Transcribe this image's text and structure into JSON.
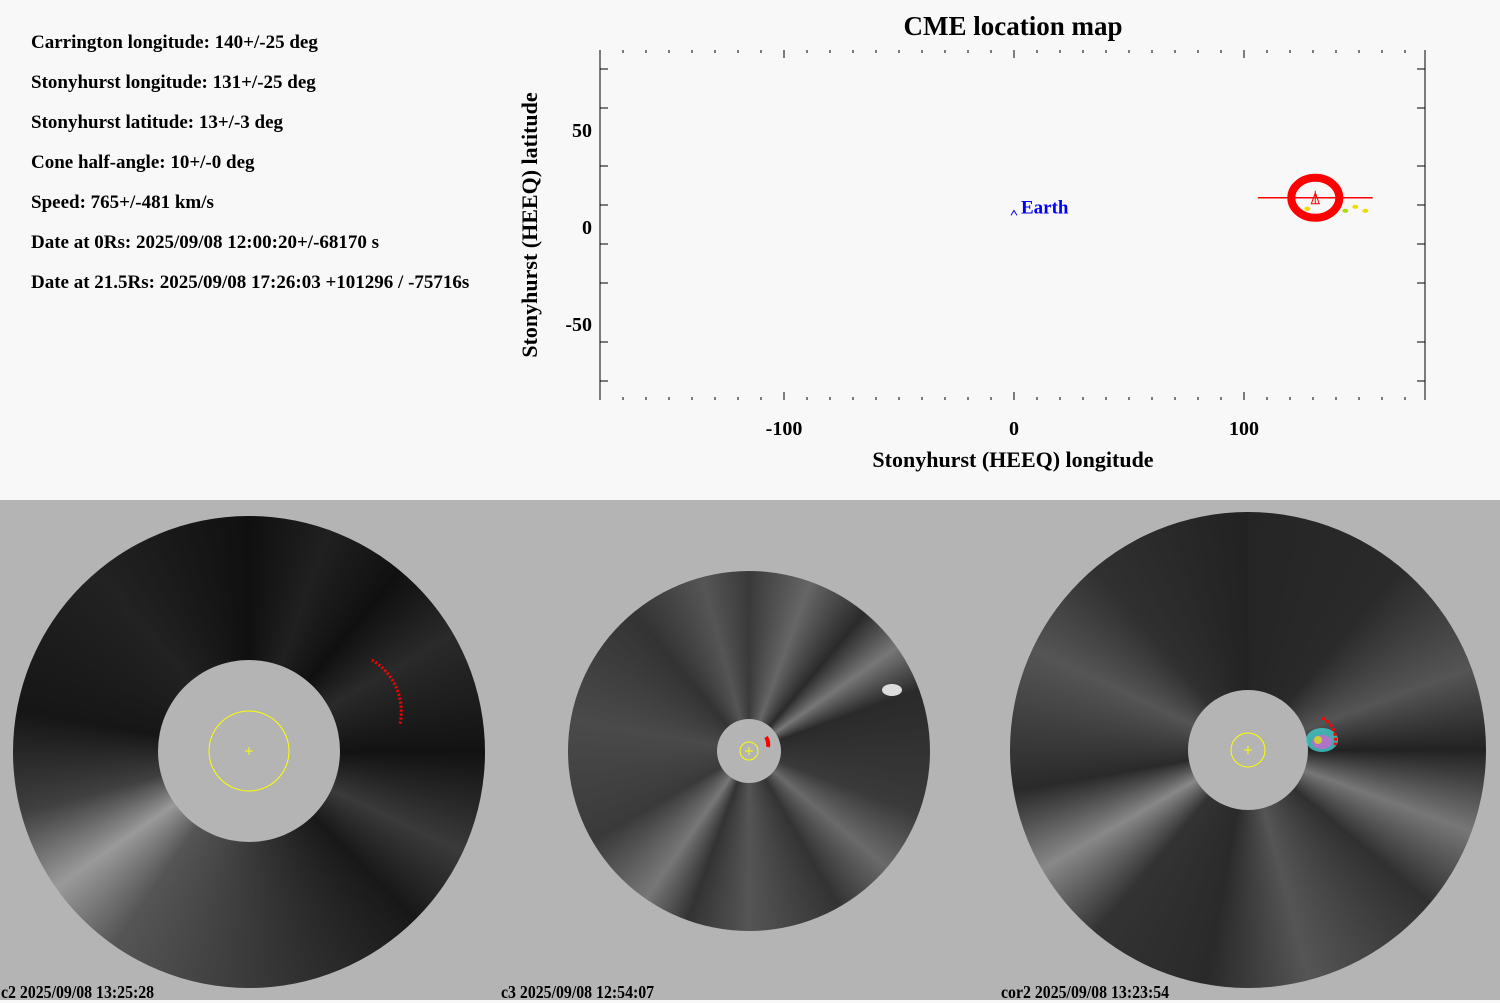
{
  "info": [
    "Carrington longitude: 140+/-25 deg",
    "Stonyhurst longitude: 131+/-25 deg",
    "Stonyhurst latitude: 13+/-3 deg",
    "Cone half-angle: 10+/-0 deg",
    "Speed: 765+/-481 km/s",
    "Date at 0Rs: 2025/09/08 12:00:20+/-68170 s",
    "Date at 21.5Rs: 2025/09/08 17:26:03 +101296 / -75716s"
  ],
  "chart_data": {
    "type": "scatter",
    "title": "CME location map",
    "xlabel": "Stonyhurst (HEEQ) longitude",
    "ylabel": "Stonyhurst (HEEQ) latitude",
    "xlim": [
      -180,
      180
    ],
    "ylim": [
      -90,
      90
    ],
    "xticks": [
      -100,
      0,
      100
    ],
    "yticks": [
      50,
      0,
      -50
    ],
    "grid": false,
    "points": [
      {
        "name": "Earth",
        "lon": 0,
        "lat": 7,
        "color": "#0000ff"
      },
      {
        "name": "CME",
        "lon": 131,
        "lat": 13,
        "lon_err": 25,
        "lat_err": 3,
        "half_angle": 10,
        "color": "#ff0000"
      }
    ]
  },
  "images": [
    {
      "caption": "c2 2025/09/08 13:25:28"
    },
    {
      "caption": "c3 2025/09/08 12:54:07"
    },
    {
      "caption": "cor2 2025/09/08 13:23:54"
    }
  ],
  "colors": {
    "background": "#f8f8f8",
    "panel": "#b4b4b4",
    "cme": "#ff0000",
    "earth": "#0000ff",
    "sun": "#ffff00"
  }
}
